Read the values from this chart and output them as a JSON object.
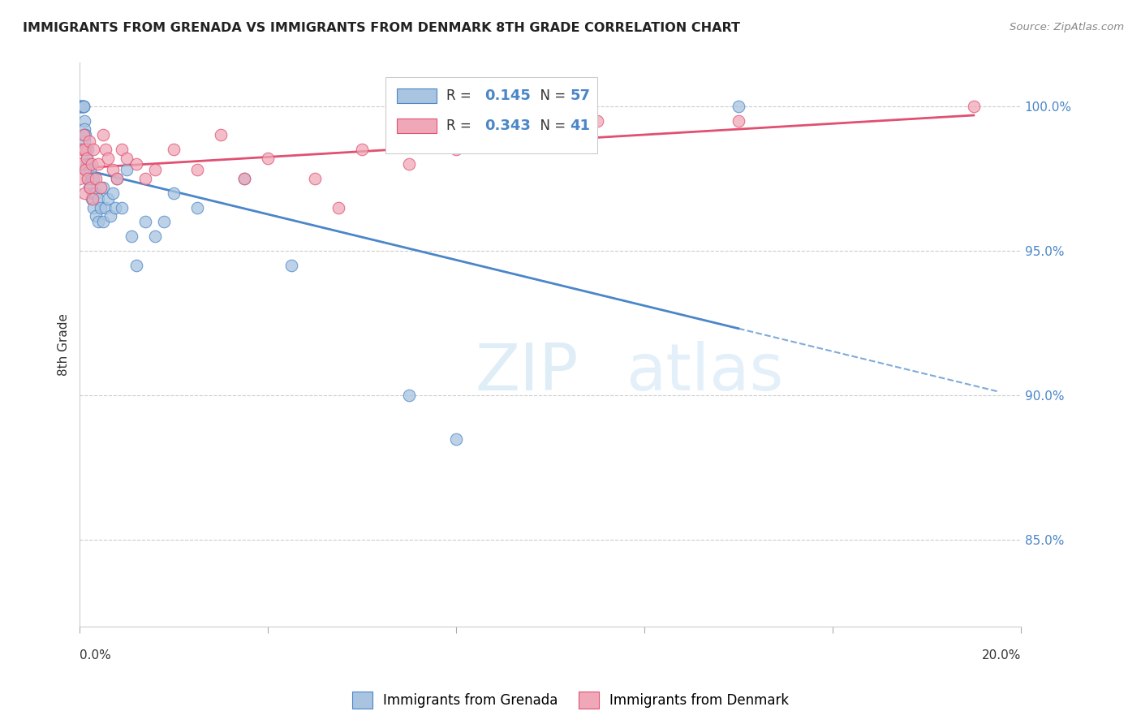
{
  "title": "IMMIGRANTS FROM GRENADA VS IMMIGRANTS FROM DENMARK 8TH GRADE CORRELATION CHART",
  "source": "Source: ZipAtlas.com",
  "ylabel": "8th Grade",
  "xlim": [
    0.0,
    20.0
  ],
  "ylim": [
    82.0,
    101.5
  ],
  "ytick_values": [
    85.0,
    90.0,
    95.0,
    100.0
  ],
  "ytick_labels": [
    "85.0%",
    "90.0%",
    "95.0%",
    "100.0%"
  ],
  "color_grenada": "#a8c4e0",
  "color_denmark": "#f0a8b8",
  "trendline_grenada_color": "#4a86c8",
  "trendline_denmark_color": "#e05070",
  "r_grenada": "0.145",
  "n_grenada": "57",
  "r_denmark": "0.343",
  "n_denmark": "41",
  "grenada_x": [
    0.0,
    0.0,
    0.0,
    0.05,
    0.05,
    0.05,
    0.07,
    0.08,
    0.08,
    0.09,
    0.1,
    0.1,
    0.1,
    0.1,
    0.12,
    0.12,
    0.13,
    0.15,
    0.15,
    0.15,
    0.18,
    0.18,
    0.2,
    0.2,
    0.22,
    0.25,
    0.25,
    0.28,
    0.3,
    0.3,
    0.35,
    0.35,
    0.4,
    0.4,
    0.45,
    0.5,
    0.5,
    0.55,
    0.6,
    0.65,
    0.7,
    0.75,
    0.8,
    0.9,
    1.0,
    1.1,
    1.2,
    1.4,
    1.6,
    1.8,
    2.0,
    2.5,
    3.5,
    4.5,
    7.0,
    8.0,
    14.0
  ],
  "grenada_y": [
    100.0,
    100.0,
    100.0,
    100.0,
    100.0,
    100.0,
    100.0,
    100.0,
    100.0,
    100.0,
    99.5,
    99.2,
    99.0,
    98.8,
    99.0,
    98.5,
    98.5,
    98.2,
    98.0,
    97.8,
    98.5,
    97.5,
    98.0,
    97.2,
    97.8,
    97.5,
    96.8,
    97.0,
    97.5,
    96.5,
    97.0,
    96.2,
    96.8,
    96.0,
    96.5,
    97.2,
    96.0,
    96.5,
    96.8,
    96.2,
    97.0,
    96.5,
    97.5,
    96.5,
    97.8,
    95.5,
    94.5,
    96.0,
    95.5,
    96.0,
    97.0,
    96.5,
    97.5,
    94.5,
    90.0,
    88.5,
    100.0
  ],
  "denmark_x": [
    0.0,
    0.02,
    0.05,
    0.08,
    0.1,
    0.1,
    0.12,
    0.15,
    0.18,
    0.2,
    0.22,
    0.25,
    0.28,
    0.3,
    0.35,
    0.4,
    0.45,
    0.5,
    0.55,
    0.6,
    0.7,
    0.8,
    0.9,
    1.0,
    1.2,
    1.4,
    1.6,
    2.0,
    2.5,
    3.0,
    3.5,
    4.0,
    5.0,
    5.5,
    6.0,
    7.0,
    8.0,
    9.0,
    11.0,
    14.0,
    19.0
  ],
  "denmark_y": [
    97.5,
    98.0,
    98.5,
    99.0,
    97.0,
    98.5,
    97.8,
    98.2,
    97.5,
    98.8,
    97.2,
    98.0,
    96.8,
    98.5,
    97.5,
    98.0,
    97.2,
    99.0,
    98.5,
    98.2,
    97.8,
    97.5,
    98.5,
    98.2,
    98.0,
    97.5,
    97.8,
    98.5,
    97.8,
    99.0,
    97.5,
    98.2,
    97.5,
    96.5,
    98.5,
    98.0,
    98.5,
    99.0,
    99.5,
    99.5,
    100.0
  ]
}
